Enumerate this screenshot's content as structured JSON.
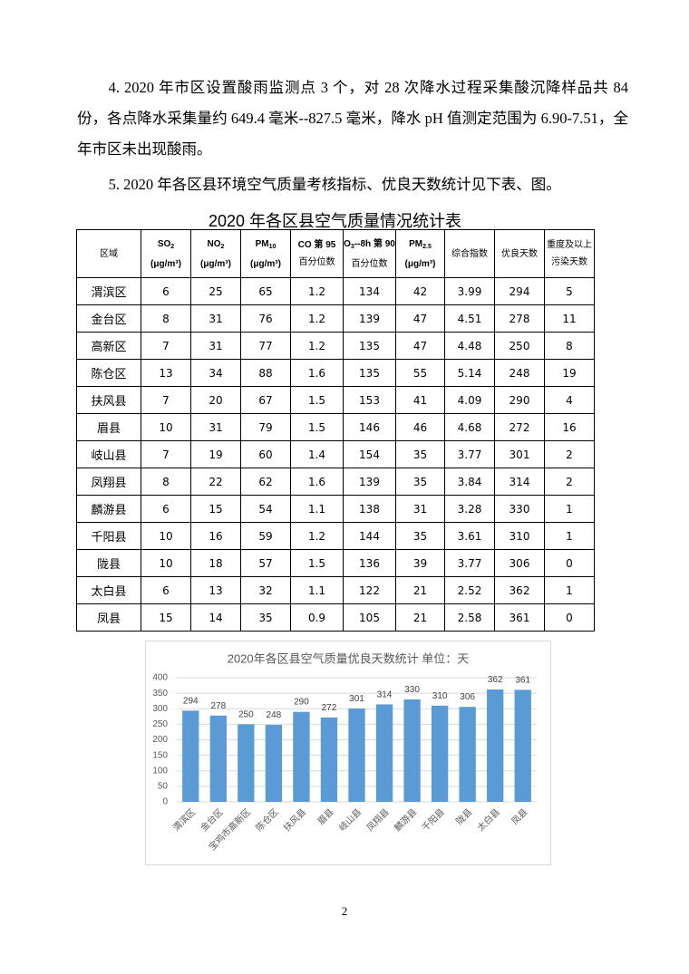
{
  "paragraphs": [
    "4. 2020 年市区设置酸雨监测点 3 个，对 28 次降水过程采集酸沉降样品共 84 份，各点降水采集量约 649.4 毫米--827.5 毫米，降水 pH 值测定范围为 6.90-7.51，全年市区未出现酸雨。",
    "5. 2020 年各区县环境空气质量考核指标、优良天数统计见下表、图。"
  ],
  "table": {
    "title": "2020 年各区县空气质量情况统计表",
    "header": [
      [
        [
          "区域"
        ]
      ],
      [
        [
          "SO",
          {
            "sub": "2"
          }
        ],
        [
          "(μg/m³)"
        ]
      ],
      [
        [
          "NO",
          {
            "sub": "2"
          }
        ],
        [
          "(μg/m³)"
        ]
      ],
      [
        [
          "PM",
          {
            "sub": "10"
          }
        ],
        [
          "(μg/m³)"
        ]
      ],
      [
        [
          "CO 第 95"
        ],
        [
          "百分位数"
        ]
      ],
      [
        [
          "O",
          {
            "sub": "3"
          },
          "--8h 第 90"
        ],
        [
          "百分位数"
        ]
      ],
      [
        [
          "PM",
          {
            "sub": "2.5"
          }
        ],
        [
          "(μg/m³)"
        ]
      ],
      [
        [
          "综合指数"
        ]
      ],
      [
        [
          "优良天数"
        ]
      ],
      [
        [
          "重度及以上"
        ],
        [
          "污染天数"
        ]
      ]
    ],
    "rows": [
      [
        "渭滨区",
        6,
        25,
        65,
        1.2,
        134,
        42,
        3.99,
        294,
        5
      ],
      [
        "金台区",
        8,
        31,
        76,
        1.2,
        139,
        47,
        4.51,
        278,
        11
      ],
      [
        "高新区",
        7,
        31,
        77,
        1.2,
        135,
        47,
        4.48,
        250,
        8
      ],
      [
        "陈仓区",
        13,
        34,
        88,
        1.6,
        135,
        55,
        5.14,
        248,
        19
      ],
      [
        "扶风县",
        7,
        20,
        67,
        1.5,
        153,
        41,
        4.09,
        290,
        4
      ],
      [
        "眉县",
        10,
        31,
        79,
        1.5,
        146,
        46,
        4.68,
        272,
        16
      ],
      [
        "岐山县",
        7,
        19,
        60,
        1.4,
        154,
        35,
        3.77,
        301,
        2
      ],
      [
        "凤翔县",
        8,
        22,
        62,
        1.6,
        139,
        35,
        3.84,
        314,
        2
      ],
      [
        "麟游县",
        6,
        15,
        54,
        1.1,
        138,
        31,
        3.28,
        330,
        1
      ],
      [
        "千阳县",
        10,
        16,
        59,
        1.2,
        144,
        35,
        3.61,
        310,
        1
      ],
      [
        "陇县",
        10,
        18,
        57,
        1.5,
        136,
        39,
        3.77,
        306,
        0
      ],
      [
        "太白县",
        6,
        13,
        32,
        1.1,
        122,
        21,
        2.52,
        362,
        1
      ],
      [
        "凤县",
        15,
        14,
        35,
        0.9,
        105,
        21,
        2.58,
        361,
        0
      ]
    ]
  },
  "chart_data": {
    "type": "bar",
    "title": "2020年各区县空气质量优良天数统计 单位：天",
    "categories": [
      "渭滨区",
      "金台区",
      "宝鸡市高新区",
      "陈仓区",
      "扶风县",
      "眉县",
      "岐山县",
      "凤翔县",
      "麟游县",
      "千阳县",
      "陇县",
      "太白县",
      "凤县"
    ],
    "values": [
      294,
      278,
      250,
      248,
      290,
      272,
      301,
      314,
      330,
      310,
      306,
      362,
      361
    ],
    "color": "#5b9bd5",
    "ylim": [
      0,
      400
    ],
    "yticks": [
      0,
      50,
      100,
      150,
      200,
      250,
      300,
      350,
      400
    ],
    "grid": true
  },
  "page_number": "2"
}
